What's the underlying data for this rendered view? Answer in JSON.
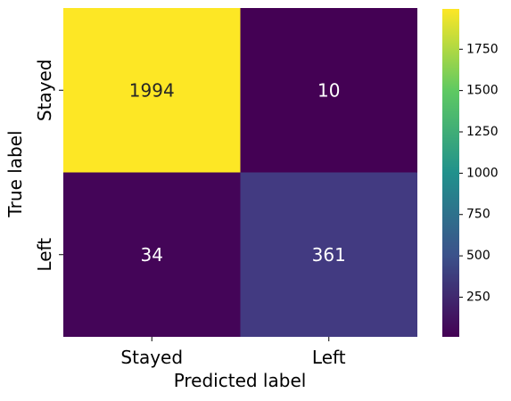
{
  "chart_data": {
    "type": "heatmap",
    "x_categories": [
      "Stayed",
      "Left"
    ],
    "y_categories": [
      "Stayed",
      "Left"
    ],
    "values": [
      [
        1994,
        10
      ],
      [
        34,
        361
      ]
    ],
    "xlabel": "Predicted label",
    "ylabel": "True label",
    "colormap": "viridis",
    "vmin": 10,
    "vmax": 1994,
    "colorbar_ticks": [
      250,
      500,
      750,
      1000,
      1250,
      1500,
      1750
    ],
    "colorbar_tick_labels": [
      "250",
      "500",
      "750",
      "1000",
      "1250",
      "1500",
      "1750"
    ],
    "annotation_colors": {
      "light_background": "#262626",
      "dark_background": "#ffffff"
    }
  }
}
